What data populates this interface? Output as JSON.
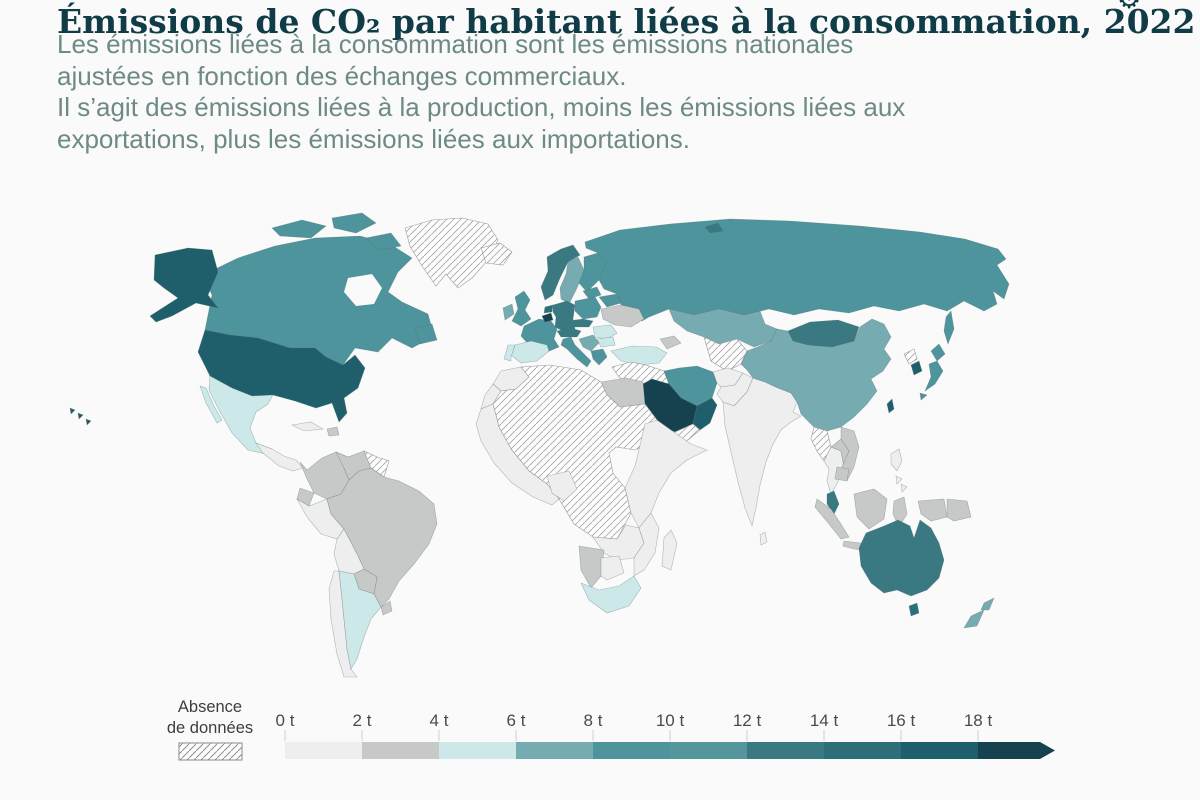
{
  "header": {
    "title": "Émissions de CO₂ par habitant liées à la consommation, 2022",
    "subtitle_lines": [
      "Les émissions liées à la consommation sont les émissions nationales",
      "ajustées en fonction des échanges commerciaux.",
      "Il s’agit des émissions liées à la production, moins les émissions liées aux",
      "exportations, plus les émissions liées aux importations."
    ],
    "settings_icon": "gear"
  },
  "chart_data": {
    "type": "heatmap",
    "subtype": "choropleth-world-map",
    "title": "Émissions de CO₂ par habitant liées à la consommation, 2022",
    "unit": "tonnes de CO₂ par habitant (t)",
    "legend": {
      "position": "bottom",
      "no_data_label_lines": [
        "Absence",
        "de données"
      ],
      "tick_labels": [
        "0 t",
        "2 t",
        "4 t",
        "6 t",
        "8 t",
        "10 t",
        "12 t",
        "14 t",
        "16 t",
        "18 t"
      ],
      "open_ended_arrow": true,
      "bins": [
        {
          "key": "0-2",
          "range": "0–2 t",
          "color": "#edeeed"
        },
        {
          "key": "2-4",
          "range": "2–4 t",
          "color": "#c6c9c7"
        },
        {
          "key": "4-6",
          "range": "4–6 t",
          "color": "#cde8e9"
        },
        {
          "key": "6-8",
          "range": "6–8 t",
          "color": "#76acb1"
        },
        {
          "key": "8-10",
          "range": "8–10 t",
          "color": "#4e949c"
        },
        {
          "key": "10-12",
          "range": "10–12 t",
          "color": "#55959c"
        },
        {
          "key": "12-14",
          "range": "12–14 t",
          "color": "#3a7981"
        },
        {
          "key": "14-16",
          "range": "14–16 t",
          "color": "#2d6f79"
        },
        {
          "key": "16-18",
          "range": "16–18 t",
          "color": "#1e5f6b"
        },
        {
          "key": "18+",
          "range": "18 t et plus",
          "color": "#15424e"
        }
      ],
      "no_data_color": "hatched"
    },
    "regions": [
      {
        "id": "greenland",
        "name": "Groenland",
        "bin": "no-data"
      },
      {
        "id": "iceland",
        "name": "Islande",
        "bin": "no-data"
      },
      {
        "id": "canada",
        "name": "Canada",
        "bin": "8-10"
      },
      {
        "id": "usa",
        "name": "États-Unis",
        "bin": "16-18"
      },
      {
        "id": "hawaii",
        "name": "Hawaï (États-Unis)",
        "bin": "16-18"
      },
      {
        "id": "mexico",
        "name": "Mexique",
        "bin": "4-6"
      },
      {
        "id": "central_america",
        "name": "Amérique centrale",
        "bin": "0-2"
      },
      {
        "id": "cuba",
        "name": "Cuba",
        "bin": "0-2"
      },
      {
        "id": "hispaniola",
        "name": "Haïti / République dominicaine",
        "bin": "2-4"
      },
      {
        "id": "colombia",
        "name": "Colombie",
        "bin": "2-4"
      },
      {
        "id": "venezuela",
        "name": "Venezuela",
        "bin": "2-4"
      },
      {
        "id": "guyanas",
        "name": "Guyana / Suriname",
        "bin": "no-data"
      },
      {
        "id": "ecuador",
        "name": "Équateur",
        "bin": "2-4"
      },
      {
        "id": "peru",
        "name": "Pérou",
        "bin": "0-2"
      },
      {
        "id": "brazil",
        "name": "Brésil",
        "bin": "2-4"
      },
      {
        "id": "bolivia",
        "name": "Bolivie",
        "bin": "0-2"
      },
      {
        "id": "paraguay",
        "name": "Paraguay",
        "bin": "2-4"
      },
      {
        "id": "chile",
        "name": "Chili",
        "bin": "0-2"
      },
      {
        "id": "argentina",
        "name": "Argentine",
        "bin": "4-6"
      },
      {
        "id": "uruguay",
        "name": "Uruguay",
        "bin": "2-4"
      },
      {
        "id": "russia",
        "name": "Russie",
        "bin": "8-10"
      },
      {
        "id": "norway",
        "name": "Norvège",
        "bin": "12-14"
      },
      {
        "id": "sweden",
        "name": "Suède",
        "bin": "6-8"
      },
      {
        "id": "finland",
        "name": "Finlande",
        "bin": "8-10"
      },
      {
        "id": "denmark",
        "name": "Danemark",
        "bin": "8-10"
      },
      {
        "id": "uk",
        "name": "Royaume-Uni",
        "bin": "8-10"
      },
      {
        "id": "ireland",
        "name": "Irlande",
        "bin": "6-8"
      },
      {
        "id": "france",
        "name": "France",
        "bin": "8-10"
      },
      {
        "id": "belgium",
        "name": "Belgique",
        "bin": "18+"
      },
      {
        "id": "netherlands",
        "name": "Pays-Bas",
        "bin": "14-16"
      },
      {
        "id": "germany",
        "name": "Allemagne",
        "bin": "12-14"
      },
      {
        "id": "poland",
        "name": "Pologne",
        "bin": "8-10"
      },
      {
        "id": "czechia",
        "name": "Tchéquie / Slovaquie",
        "bin": "12-14"
      },
      {
        "id": "austria_ch",
        "name": "Autriche / Suisse",
        "bin": "12-14"
      },
      {
        "id": "spain",
        "name": "Espagne",
        "bin": "4-6"
      },
      {
        "id": "portugal",
        "name": "Portugal",
        "bin": "4-6"
      },
      {
        "id": "italy",
        "name": "Italie",
        "bin": "8-10"
      },
      {
        "id": "balkans",
        "name": "Balkans occidentaux",
        "bin": "6-8"
      },
      {
        "id": "romania",
        "name": "Roumanie",
        "bin": "4-6"
      },
      {
        "id": "bulgaria",
        "name": "Bulgarie",
        "bin": "4-6"
      },
      {
        "id": "greece",
        "name": "Grèce",
        "bin": "8-10"
      },
      {
        "id": "baltics",
        "name": "Pays baltes",
        "bin": "8-10"
      },
      {
        "id": "belarus",
        "name": "Biélorussie",
        "bin": "8-10"
      },
      {
        "id": "ukraine",
        "name": "Ukraine",
        "bin": "2-4"
      },
      {
        "id": "kazakhstan",
        "name": "Kazakhstan",
        "bin": "6-8"
      },
      {
        "id": "central_asia",
        "name": "Ouzbékistan / Turkménistan",
        "bin": "no-data"
      },
      {
        "id": "caucasus",
        "name": "Caucase",
        "bin": "2-4"
      },
      {
        "id": "turkey",
        "name": "Turquie",
        "bin": "4-6"
      },
      {
        "id": "syria_iraq",
        "name": "Syrie / Irak",
        "bin": "no-data"
      },
      {
        "id": "iran",
        "name": "Iran",
        "bin": "8-10"
      },
      {
        "id": "afghanistan",
        "name": "Afghanistan",
        "bin": "0-2"
      },
      {
        "id": "pakistan",
        "name": "Pakistan",
        "bin": "0-2"
      },
      {
        "id": "india",
        "name": "Inde",
        "bin": "0-2"
      },
      {
        "id": "sri_lanka",
        "name": "Sri Lanka",
        "bin": "0-2"
      },
      {
        "id": "china",
        "name": "Chine",
        "bin": "6-8"
      },
      {
        "id": "mongolia",
        "name": "Mongolie",
        "bin": "12-14"
      },
      {
        "id": "saudi",
        "name": "Arabie saoudite",
        "bin": "18+"
      },
      {
        "id": "oman_uae",
        "name": "Oman / Émirats arabes unis",
        "bin": "16-18"
      },
      {
        "id": "yemen",
        "name": "Yémen",
        "bin": "no-data"
      },
      {
        "id": "egypt",
        "name": "Égypte",
        "bin": "2-4"
      },
      {
        "id": "morocco",
        "name": "Maroc",
        "bin": "0-2"
      },
      {
        "id": "wsahara",
        "name": "Sahara occidental",
        "bin": "0-2"
      },
      {
        "id": "sahara",
        "name": "Algérie / Libye / Sahel / Soudan / RDC / Angola",
        "bin": "no-data"
      },
      {
        "id": "west_africa",
        "name": "Afrique de l’Ouest",
        "bin": "0-2"
      },
      {
        "id": "nigeria",
        "name": "Nigéria",
        "bin": "0-2"
      },
      {
        "id": "horn",
        "name": "Éthiopie / Corne de l’Afrique",
        "bin": "0-2"
      },
      {
        "id": "zambia_zimb",
        "name": "Zambie / Zimbabwe",
        "bin": "0-2"
      },
      {
        "id": "namibia",
        "name": "Namibie",
        "bin": "2-4"
      },
      {
        "id": "botswana",
        "name": "Botswana",
        "bin": "0-2"
      },
      {
        "id": "south_africa",
        "name": "Afrique du Sud",
        "bin": "4-6"
      },
      {
        "id": "mozambique",
        "name": "Mozambique",
        "bin": "0-2"
      },
      {
        "id": "madagascar",
        "name": "Madagascar",
        "bin": "0-2"
      },
      {
        "id": "myanmar",
        "name": "Myanmar",
        "bin": "no-data"
      },
      {
        "id": "thailand",
        "name": "Thaïlande",
        "bin": "0-2"
      },
      {
        "id": "laos",
        "name": "Laos",
        "bin": "2-4"
      },
      {
        "id": "vietnam",
        "name": "Viêt Nam",
        "bin": "2-4"
      },
      {
        "id": "cambodia",
        "name": "Cambodge",
        "bin": "2-4"
      },
      {
        "id": "malaysia",
        "name": "Malaisie",
        "bin": "12-14"
      },
      {
        "id": "indonesia",
        "name": "Indonésie",
        "bin": "2-4"
      },
      {
        "id": "png",
        "name": "Papouasie-Nouvelle-Guinée",
        "bin": "2-4"
      },
      {
        "id": "philippines",
        "name": "Philippines",
        "bin": "0-2"
      },
      {
        "id": "japan",
        "name": "Japon",
        "bin": "8-10"
      },
      {
        "id": "north_korea",
        "name": "Corée du Nord",
        "bin": "no-data"
      },
      {
        "id": "south_korea",
        "name": "Corée du Sud",
        "bin": "16-18"
      },
      {
        "id": "taiwan",
        "name": "Taïwan",
        "bin": "16-18"
      },
      {
        "id": "australia",
        "name": "Australie",
        "bin": "12-14"
      },
      {
        "id": "tasmania",
        "name": "Tasmanie (Australie)",
        "bin": "14-16"
      },
      {
        "id": "nz",
        "name": "Nouvelle-Zélande",
        "bin": "6-8"
      }
    ]
  }
}
